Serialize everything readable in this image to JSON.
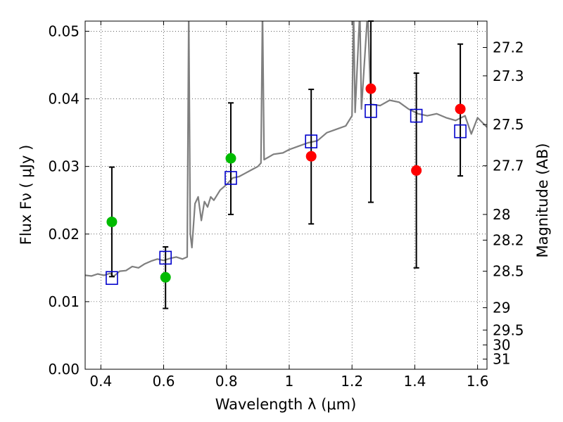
{
  "chart_data": {
    "type": "scatter",
    "xlabel": "Wavelength  λ (μm)",
    "ylabel": "Flux  Fν  ( μJy )",
    "ylabel_right": "Magnitude (AB)",
    "xlim": [
      0.35,
      1.63
    ],
    "ylim": [
      0.0,
      0.0515
    ],
    "grid": true,
    "x_ticks": [
      0.4,
      0.6,
      0.8,
      1.0,
      1.2,
      1.4,
      1.6
    ],
    "x_tick_labels": [
      "0.4",
      "0.6",
      "0.8",
      "1",
      "1.2",
      "1.4",
      "1.6"
    ],
    "y_ticks": [
      0.0,
      0.01,
      0.02,
      0.03,
      0.04,
      0.05
    ],
    "y_tick_labels": [
      "0.00",
      "0.01",
      "0.02",
      "0.03",
      "0.04",
      "0.05"
    ],
    "right_ticks": [
      {
        "label": "27.2",
        "flux": 0.0476
      },
      {
        "label": "27.3",
        "flux": 0.0434
      },
      {
        "label": "27.5",
        "flux": 0.0362
      },
      {
        "label": "27.7",
        "flux": 0.0301
      },
      {
        "label": "28",
        "flux": 0.0229
      },
      {
        "label": "28.2",
        "flux": 0.0191
      },
      {
        "label": "28.5",
        "flux": 0.0145
      },
      {
        "label": "29",
        "flux": 0.0091
      },
      {
        "label": "29.5",
        "flux": 0.0058
      },
      {
        "label": "30",
        "flux": 0.0036
      },
      {
        "label": "31",
        "flux": 0.0015
      }
    ],
    "series": [
      {
        "name": "observed_optical",
        "color": "#00bb00",
        "marker": "circle",
        "points": [
          {
            "x": 0.435,
            "y": 0.0218
          },
          {
            "x": 0.606,
            "y": 0.0136
          },
          {
            "x": 0.814,
            "y": 0.0312
          }
        ]
      },
      {
        "name": "observed_nir",
        "color": "#ff0000",
        "marker": "circle",
        "points": [
          {
            "x": 1.07,
            "y": 0.0315
          },
          {
            "x": 1.26,
            "y": 0.0415
          },
          {
            "x": 1.405,
            "y": 0.0294
          },
          {
            "x": 1.545,
            "y": 0.0385
          }
        ]
      },
      {
        "name": "model_photometry",
        "color": "#0000cc",
        "marker": "square",
        "points": [
          {
            "x": 0.435,
            "y": 0.0135
          },
          {
            "x": 0.606,
            "y": 0.0165
          },
          {
            "x": 0.814,
            "y": 0.0283
          },
          {
            "x": 1.07,
            "y": 0.0337
          },
          {
            "x": 1.26,
            "y": 0.0382
          },
          {
            "x": 1.405,
            "y": 0.0375
          },
          {
            "x": 1.545,
            "y": 0.0352
          }
        ]
      }
    ],
    "error_bars": [
      {
        "x": 0.435,
        "low": 0.0137,
        "high": 0.0299
      },
      {
        "x": 0.606,
        "low": 0.009,
        "high": 0.0181
      },
      {
        "x": 0.814,
        "low": 0.0229,
        "high": 0.0394
      },
      {
        "x": 1.07,
        "low": 0.0215,
        "high": 0.0414
      },
      {
        "x": 1.26,
        "low": 0.0247,
        "high": 0.0515
      },
      {
        "x": 1.405,
        "low": 0.015,
        "high": 0.0438
      },
      {
        "x": 1.545,
        "low": 0.0286,
        "high": 0.0481
      }
    ],
    "model_spectrum": {
      "name": "template_sed",
      "color": "#7f7f7f",
      "points": [
        [
          0.35,
          0.0139
        ],
        [
          0.37,
          0.0138
        ],
        [
          0.39,
          0.0141
        ],
        [
          0.41,
          0.0139
        ],
        [
          0.43,
          0.0142
        ],
        [
          0.44,
          0.0137
        ],
        [
          0.46,
          0.0145
        ],
        [
          0.48,
          0.0146
        ],
        [
          0.5,
          0.0152
        ],
        [
          0.52,
          0.015
        ],
        [
          0.54,
          0.0156
        ],
        [
          0.56,
          0.016
        ],
        [
          0.58,
          0.0163
        ],
        [
          0.6,
          0.0161
        ],
        [
          0.62,
          0.0164
        ],
        [
          0.64,
          0.0166
        ],
        [
          0.66,
          0.0163
        ],
        [
          0.675,
          0.0166
        ],
        [
          0.68,
          0.053
        ],
        [
          0.685,
          0.02
        ],
        [
          0.69,
          0.018
        ],
        [
          0.7,
          0.0245
        ],
        [
          0.71,
          0.0255
        ],
        [
          0.72,
          0.022
        ],
        [
          0.73,
          0.0248
        ],
        [
          0.74,
          0.024
        ],
        [
          0.75,
          0.0255
        ],
        [
          0.76,
          0.025
        ],
        [
          0.78,
          0.0265
        ],
        [
          0.8,
          0.0273
        ],
        [
          0.82,
          0.0283
        ],
        [
          0.84,
          0.0285
        ],
        [
          0.86,
          0.029
        ],
        [
          0.88,
          0.0295
        ],
        [
          0.9,
          0.03
        ],
        [
          0.91,
          0.0305
        ],
        [
          0.915,
          0.053
        ],
        [
          0.92,
          0.031
        ],
        [
          0.95,
          0.0318
        ],
        [
          0.98,
          0.032
        ],
        [
          1.0,
          0.0325
        ],
        [
          1.03,
          0.033
        ],
        [
          1.06,
          0.0335
        ],
        [
          1.09,
          0.0338
        ],
        [
          1.12,
          0.035
        ],
        [
          1.15,
          0.0355
        ],
        [
          1.18,
          0.036
        ],
        [
          1.2,
          0.0375
        ],
        [
          1.205,
          0.053
        ],
        [
          1.21,
          0.038
        ],
        [
          1.225,
          0.053
        ],
        [
          1.23,
          0.0385
        ],
        [
          1.25,
          0.053
        ],
        [
          1.26,
          0.0392
        ],
        [
          1.29,
          0.039
        ],
        [
          1.32,
          0.0398
        ],
        [
          1.35,
          0.0395
        ],
        [
          1.38,
          0.0385
        ],
        [
          1.41,
          0.0378
        ],
        [
          1.44,
          0.0375
        ],
        [
          1.47,
          0.0378
        ],
        [
          1.5,
          0.0372
        ],
        [
          1.53,
          0.0368
        ],
        [
          1.56,
          0.0375
        ],
        [
          1.58,
          0.0348
        ],
        [
          1.6,
          0.0372
        ],
        [
          1.63,
          0.0358
        ]
      ]
    }
  }
}
